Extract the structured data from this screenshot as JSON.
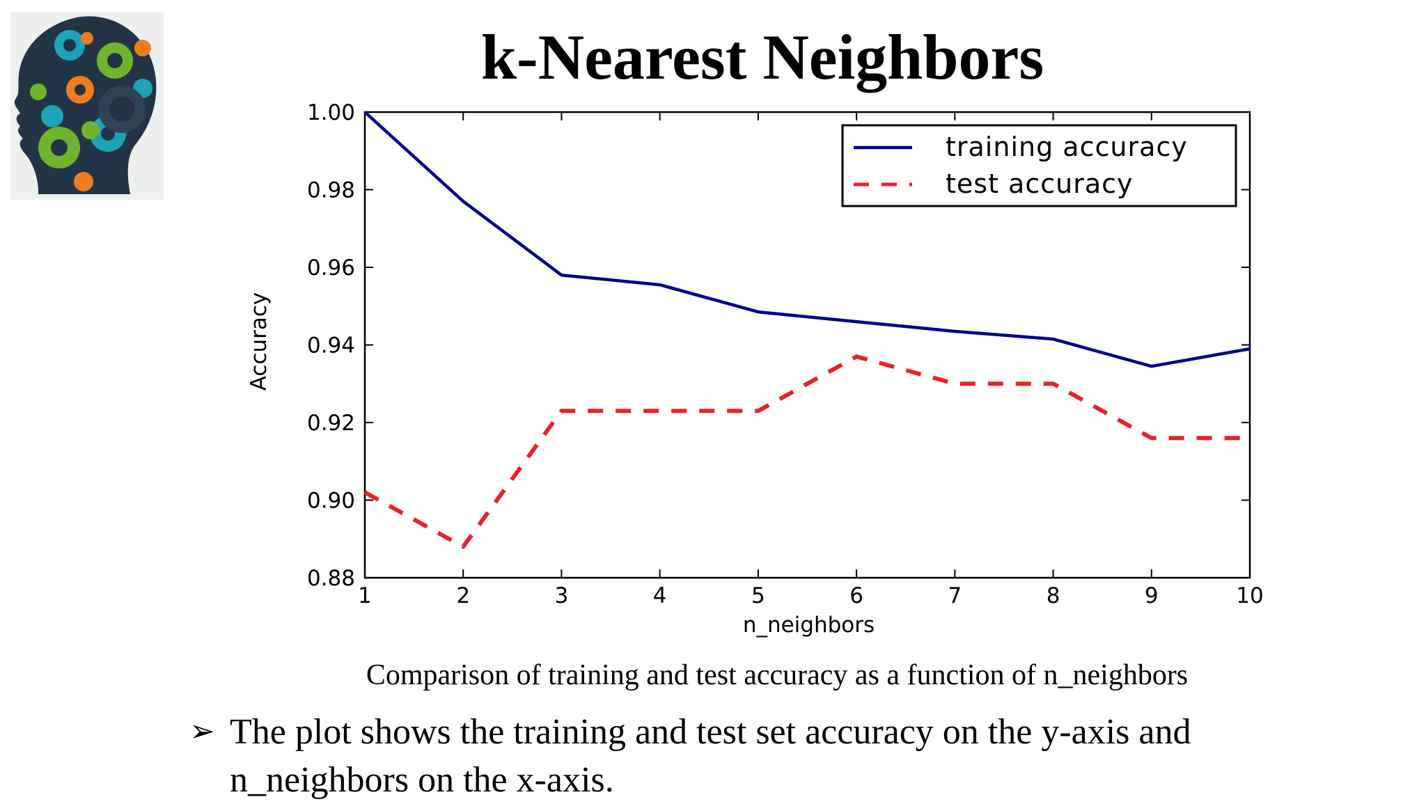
{
  "slide": {
    "title": "k-Nearest Neighbors",
    "caption": "Comparison of training and test accuracy as a function of n_neighbors",
    "bullet_marker": "➢",
    "bullet_text": "The plot shows the training and test set accuracy on the y-axis and n_neighbors on the x-axis."
  },
  "logo": {
    "icon": "head-with-gears-icon",
    "colors": {
      "head": "#243447",
      "teal": "#1ba3b8",
      "green": "#6fb42c",
      "orange": "#f07c22"
    }
  },
  "chart_data": {
    "type": "line",
    "title": "",
    "xlabel": "n_neighbors",
    "ylabel": "Accuracy",
    "x": [
      1,
      2,
      3,
      4,
      5,
      6,
      7,
      8,
      9,
      10
    ],
    "xticks": [
      "1",
      "2",
      "3",
      "4",
      "5",
      "6",
      "7",
      "8",
      "9",
      "10"
    ],
    "yticks": [
      "0.88",
      "0.90",
      "0.92",
      "0.94",
      "0.96",
      "0.98",
      "1.00"
    ],
    "xlim": [
      1,
      10
    ],
    "ylim": [
      0.88,
      1.0
    ],
    "grid": false,
    "legend_position": "top-right",
    "series": [
      {
        "name": "training accuracy",
        "color": "#00008b",
        "style": "solid",
        "values": [
          1.0,
          0.977,
          0.958,
          0.9555,
          0.9485,
          0.946,
          0.9435,
          0.9415,
          0.9345,
          0.939
        ]
      },
      {
        "name": "test accuracy",
        "color": "#e8222b",
        "style": "dashed",
        "values": [
          0.902,
          0.888,
          0.923,
          0.923,
          0.923,
          0.937,
          0.93,
          0.93,
          0.916,
          0.916
        ]
      }
    ]
  }
}
